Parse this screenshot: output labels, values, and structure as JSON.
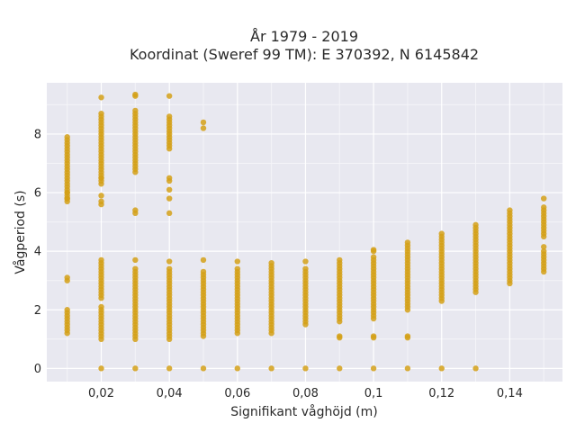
{
  "chart_data": {
    "type": "scatter",
    "title": "År 1979 - 2019",
    "subtitle": "Koordinat (Sweref 99 TM): E 370392, N 6145842",
    "xlabel": "Signifikant våghöjd (m)",
    "ylabel": "Vågperiod (s)",
    "xlim": [
      0.004,
      0.1555
    ],
    "ylim": [
      -0.45,
      9.75
    ],
    "grid": true,
    "marker_color": "#d4a017",
    "background_color": "#e8e8f0",
    "x_ticks": [
      {
        "value": 0.02,
        "label": "0,02"
      },
      {
        "value": 0.04,
        "label": "0,04"
      },
      {
        "value": 0.06,
        "label": "0,06"
      },
      {
        "value": 0.08,
        "label": "0,08"
      },
      {
        "value": 0.1,
        "label": "0,1"
      },
      {
        "value": 0.12,
        "label": "0,12"
      },
      {
        "value": 0.14,
        "label": "0,14"
      }
    ],
    "y_ticks": [
      {
        "value": 0,
        "label": "0"
      },
      {
        "value": 2,
        "label": "2"
      },
      {
        "value": 4,
        "label": "4"
      },
      {
        "value": 6,
        "label": "6"
      },
      {
        "value": 8,
        "label": "8"
      }
    ],
    "columns": [
      {
        "x": 0.01,
        "segments": [
          [
            1.2,
            2.0
          ],
          [
            5.7,
            7.9
          ]
        ],
        "points": [
          3.0,
          3.1,
          5.8,
          6.0
        ]
      },
      {
        "x": 0.02,
        "segments": [
          [
            1.0,
            2.1
          ],
          [
            2.4,
            3.7
          ],
          [
            6.3,
            8.7
          ]
        ],
        "points": [
          0,
          5.6,
          5.7,
          5.9,
          9.25,
          6.5
        ]
      },
      {
        "x": 0.03,
        "segments": [
          [
            1.0,
            3.4
          ],
          [
            6.7,
            8.8
          ]
        ],
        "points": [
          0,
          3.7,
          5.3,
          5.4,
          9.3,
          9.35
        ]
      },
      {
        "x": 0.04,
        "segments": [
          [
            1.0,
            3.4
          ],
          [
            7.5,
            8.6
          ]
        ],
        "points": [
          0,
          3.65,
          5.3,
          5.8,
          6.1,
          6.4,
          6.5,
          9.3
        ]
      },
      {
        "x": 0.05,
        "segments": [
          [
            1.1,
            3.3
          ]
        ],
        "points": [
          0,
          3.7,
          8.2,
          8.4
        ]
      },
      {
        "x": 0.06,
        "segments": [
          [
            1.2,
            3.4
          ]
        ],
        "points": [
          0,
          3.65
        ]
      },
      {
        "x": 0.07,
        "segments": [
          [
            1.2,
            3.5
          ]
        ],
        "points": [
          0,
          3.6
        ]
      },
      {
        "x": 0.08,
        "segments": [
          [
            1.5,
            3.4
          ]
        ],
        "points": [
          0,
          3.65
        ]
      },
      {
        "x": 0.09,
        "segments": [
          [
            1.6,
            3.75
          ]
        ],
        "points": [
          0,
          1.05,
          1.1
        ]
      },
      {
        "x": 0.1,
        "segments": [
          [
            1.7,
            3.8
          ]
        ],
        "points": [
          0,
          1.05,
          1.1,
          4.0,
          4.05
        ]
      },
      {
        "x": 0.11,
        "segments": [
          [
            2.0,
            4.3
          ]
        ],
        "points": [
          0,
          1.05,
          1.1
        ]
      },
      {
        "x": 0.12,
        "segments": [
          [
            2.3,
            4.6
          ]
        ],
        "points": [
          0
        ]
      },
      {
        "x": 0.13,
        "segments": [
          [
            2.6,
            4.95
          ]
        ],
        "points": [
          0
        ]
      },
      {
        "x": 0.14,
        "segments": [
          [
            2.9,
            5.4
          ]
        ],
        "points": []
      },
      {
        "x": 0.15,
        "segments": [
          [
            3.3,
            4.0
          ],
          [
            4.5,
            5.55
          ]
        ],
        "points": [
          4.15,
          5.8
        ]
      }
    ]
  }
}
